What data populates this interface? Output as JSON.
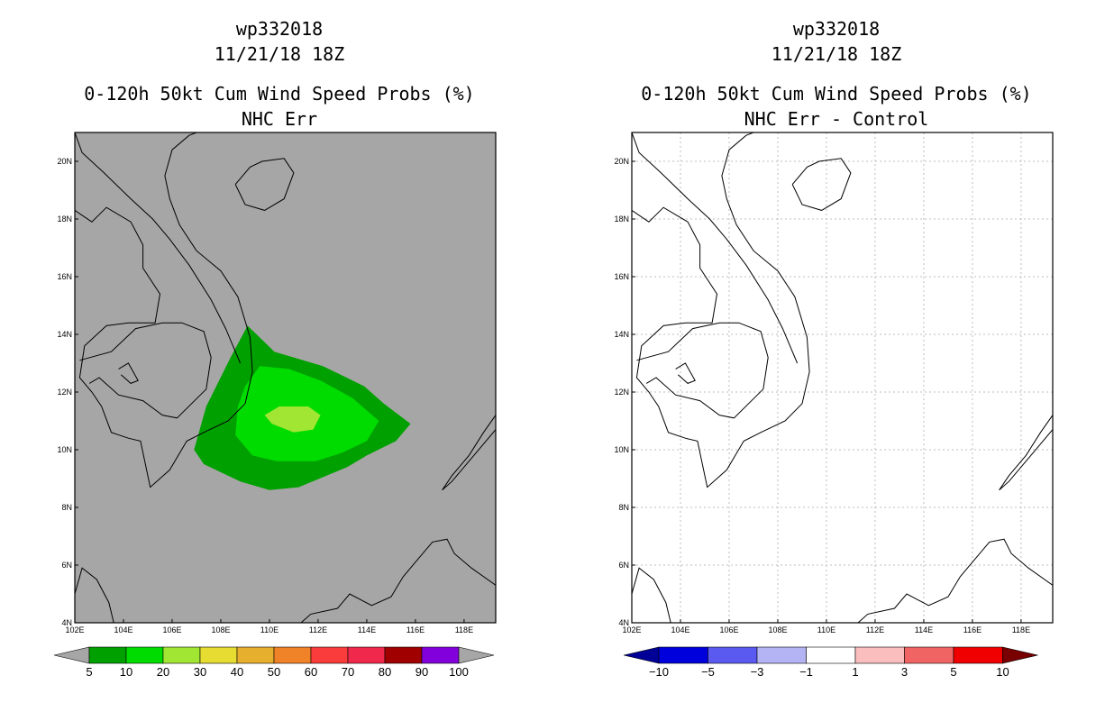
{
  "chart_data": [
    {
      "type": "heatmap",
      "title": [
        "wp332018",
        "11/21/18 18Z",
        "0-120h 50kt Cum Wind Speed Probs (%)",
        "NHC Err"
      ],
      "x_ticks": [
        "102E",
        "104E",
        "106E",
        "108E",
        "110E",
        "112E",
        "114E",
        "116E",
        "118E"
      ],
      "y_ticks": [
        "4N",
        "6N",
        "8N",
        "10N",
        "12N",
        "14N",
        "16N",
        "18N",
        "20N"
      ],
      "xlim": [
        102,
        119.3
      ],
      "ylim": [
        4,
        21
      ],
      "grid": false,
      "background": "#a6a6a6",
      "colorbar": {
        "levels": [
          "5",
          "10",
          "20",
          "30",
          "40",
          "50",
          "60",
          "70",
          "80",
          "90",
          "100"
        ],
        "colors": [
          "#00a000",
          "#00dc00",
          "#a0e632",
          "#e6dc32",
          "#e6af2d",
          "#f08228",
          "#fa3c3c",
          "#f0284b",
          "#a00000",
          "#8200dc"
        ],
        "ends": [
          "#a6a6a6",
          "#a6a6a6"
        ]
      },
      "contours": [
        {
          "level": 5,
          "color": "#00a000",
          "polygon": [
            [
              109.1,
              14.3
            ],
            [
              110.2,
              13.4
            ],
            [
              112.2,
              12.9
            ],
            [
              113.9,
              12.2
            ],
            [
              114.7,
              11.6
            ],
            [
              115.8,
              10.9
            ],
            [
              115.2,
              10.3
            ],
            [
              114,
              9.8
            ],
            [
              113.2,
              9.4
            ],
            [
              111.2,
              8.7
            ],
            [
              110.0,
              8.6
            ],
            [
              108.8,
              8.9
            ],
            [
              107.3,
              9.5
            ],
            [
              106.9,
              10.0
            ],
            [
              107.4,
              11.5
            ],
            [
              108.4,
              13.2
            ]
          ]
        },
        {
          "level": 10,
          "color": "#00dc00",
          "polygon": [
            [
              109.6,
              12.9
            ],
            [
              110.8,
              12.8
            ],
            [
              112.1,
              12.4
            ],
            [
              113.4,
              11.8
            ],
            [
              114.5,
              11.0
            ],
            [
              114.0,
              10.3
            ],
            [
              113.0,
              9.9
            ],
            [
              111.9,
              9.6
            ],
            [
              110.3,
              9.6
            ],
            [
              109.3,
              9.8
            ],
            [
              108.6,
              10.5
            ],
            [
              108.7,
              11.5
            ],
            [
              109.0,
              12.2
            ]
          ]
        },
        {
          "level": 20,
          "color": "#a0e632",
          "polygon": [
            [
              110.4,
              11.5
            ],
            [
              111.6,
              11.5
            ],
            [
              112.1,
              11.2
            ],
            [
              111.8,
              10.7
            ],
            [
              111.0,
              10.6
            ],
            [
              110.1,
              10.9
            ],
            [
              109.8,
              11.2
            ]
          ]
        }
      ]
    },
    {
      "type": "heatmap",
      "title": [
        "wp332018",
        "11/21/18 18Z",
        "0-120h 50kt Cum Wind Speed Probs (%)",
        "NHC Err - Control"
      ],
      "x_ticks": [
        "102E",
        "104E",
        "106E",
        "108E",
        "110E",
        "112E",
        "114E",
        "116E",
        "118E"
      ],
      "y_ticks": [
        "4N",
        "6N",
        "8N",
        "10N",
        "12N",
        "14N",
        "16N",
        "18N",
        "20N"
      ],
      "xlim": [
        102,
        119.3
      ],
      "ylim": [
        4,
        21
      ],
      "grid": true,
      "background": "#ffffff",
      "colorbar": {
        "levels": [
          "-10",
          "-5",
          "-3",
          "-1",
          "1",
          "3",
          "5",
          "10"
        ],
        "colors": [
          "#0000dc",
          "#5a5af0",
          "#b4b4f5",
          "#ffffff",
          "#fabebe",
          "#f06464",
          "#f00000"
        ],
        "ends": [
          "#000096",
          "#780000"
        ]
      },
      "contours": []
    }
  ]
}
